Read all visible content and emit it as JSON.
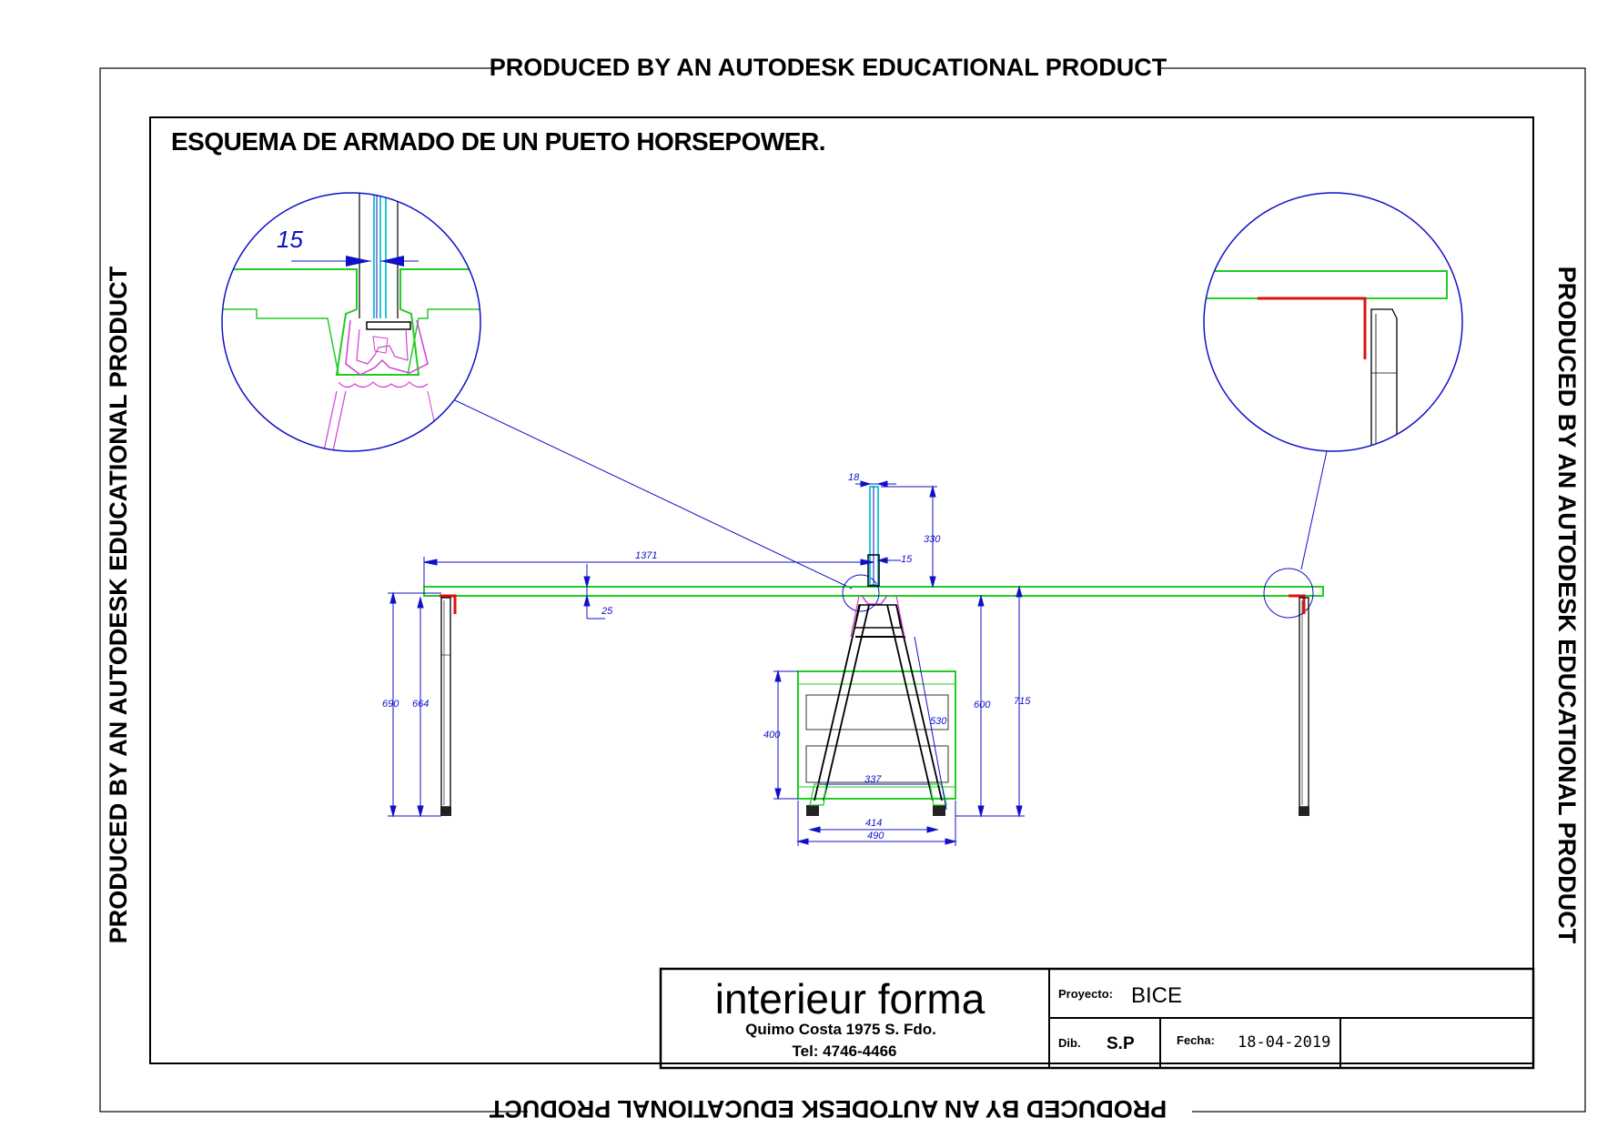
{
  "watermark": {
    "text": "PRODUCED BY AN AUTODESK EDUCATIONAL PRODUCT"
  },
  "drawing_title": "ESQUEMA DE ARMADO DE UN PUETO HORSEPOWER.",
  "detail_left": {
    "dimension": "15"
  },
  "dimensions": {
    "top_width": "18",
    "screen_height": "330",
    "screen_offset": "15",
    "half_length": "1371",
    "top_thickness": "25",
    "leg_outer_height": "690",
    "leg_inner_height": "664",
    "cabinet_height": "400",
    "cabinet_inner_width": "337",
    "cabinet_base_width": "414",
    "cabinet_width": "490",
    "frame_diagonal": "530",
    "frame_height": "600",
    "total_height": "715"
  },
  "title_block": {
    "brand": "interieur forma",
    "address": "Quimo Costa 1975 S. Fdo.",
    "phone": "Tel: 4746-4466",
    "project_label": "Proyecto:",
    "project_value": "BICE",
    "drawn_label": "Dib.",
    "drawn_value": "S.P",
    "date_label": "Fecha:",
    "date_value": "18-04-2019"
  },
  "colors": {
    "outline": "#000000",
    "desktop": "#22cc22",
    "dimension": "#1010c8",
    "bracket": "#dd1111",
    "screen": "#22c8d8",
    "clamp": "#d040d0"
  }
}
